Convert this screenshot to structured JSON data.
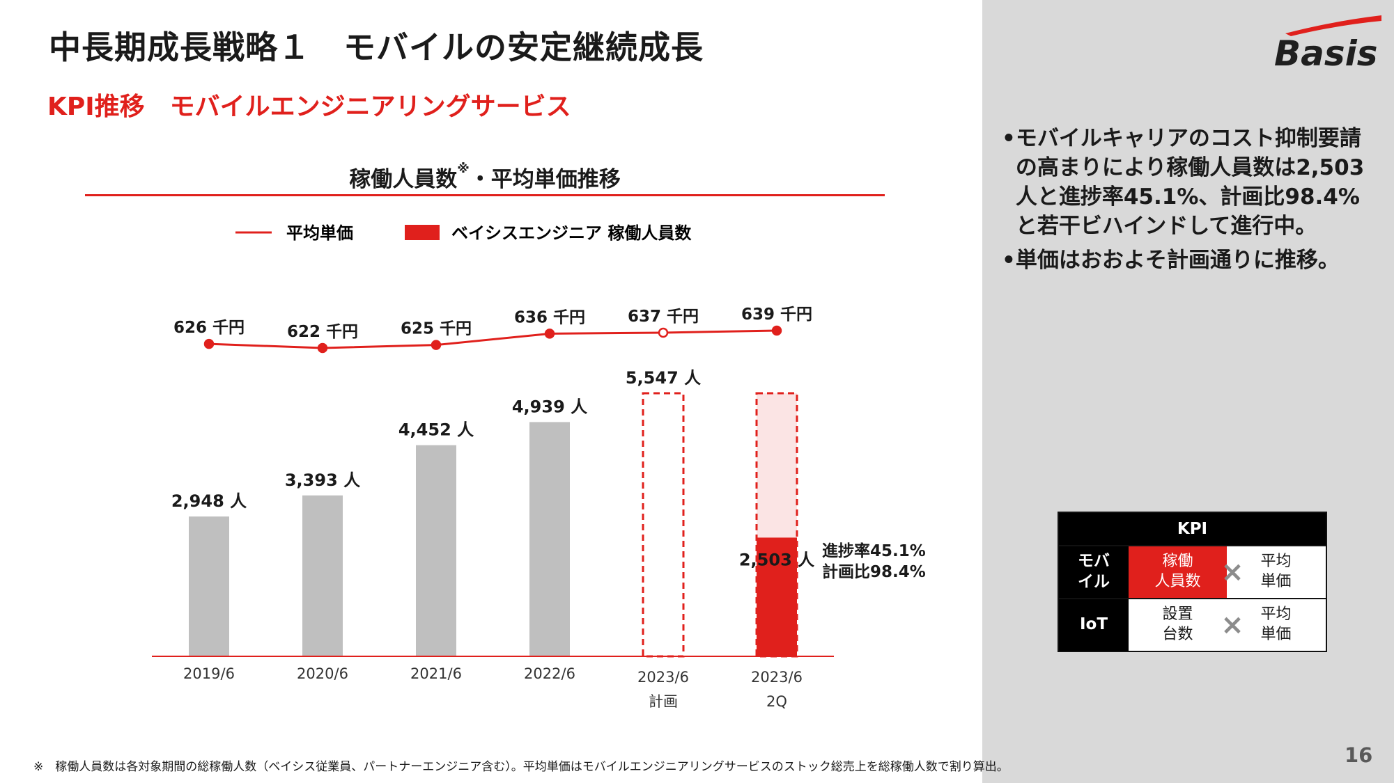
{
  "header": {
    "title": "中長期成長戦略１　モバイルの安定継続成長",
    "subtitle": "KPI推移　モバイルエンジニアリングサービス",
    "logo_text": "Basis"
  },
  "chart_title": {
    "main": "稼働人員数",
    "sup": "※",
    "rest": "・平均単価推移"
  },
  "legend": {
    "line_label": "平均単価",
    "bar_label": "ベイシスエンジニア 稼働人員数"
  },
  "chart_data": {
    "type": "bar",
    "categories": [
      "2019/6",
      "2020/6",
      "2021/6",
      "2022/6",
      "2023/6\n計画",
      "2023/6\n2Q"
    ],
    "series": [
      {
        "name": "ベイシスエンジニア 稼働人員数",
        "type": "bar",
        "values": [
          2948,
          3393,
          4452,
          4939,
          5547,
          2503
        ],
        "labels": [
          "2,948 人",
          "3,393 人",
          "4,452 人",
          "4,939 人",
          "5,547 人",
          "2,503 人"
        ],
        "styles": [
          "solid-gray",
          "solid-gray",
          "solid-gray",
          "solid-gray",
          "dashed-outline-red",
          "solid-red"
        ]
      },
      {
        "name": "平均単価",
        "type": "line",
        "values": [
          626,
          622,
          625,
          636,
          637,
          639
        ],
        "labels": [
          "626 千円",
          "622 千円",
          "625 千円",
          "636 千円",
          "637 千円",
          "639 千円"
        ],
        "hollow_point_index": 4
      }
    ],
    "plan_background_value": 5547,
    "annotation": [
      "進捗率45.1%",
      "計画比98.4%"
    ],
    "colors": {
      "gray": "#bfbfbf",
      "red": "#e0201c",
      "light_red": "#fbe4e4"
    }
  },
  "bullets": [
    "モバイルキャリアのコスト抑制要請の高まりにより稼働人員数は2,503人と進捗率45.1%、計画比98.4%と若干ビハインドして進行中。",
    "単価はおおよそ計画通りに推移。"
  ],
  "kpi_table": {
    "header": "KPI",
    "rows": [
      {
        "label": "モバ\nイル",
        "left": "稼働\n人員数",
        "right": "平均\n単価"
      },
      {
        "label": "IoT",
        "left": "設置\n台数",
        "right": "平均\n単価"
      }
    ],
    "operator": "×"
  },
  "footnote": "※　稼働人員数は各対象期間の総稼働人数（ベイシス従業員、パートナーエンジニア含む）。平均単価はモバイルエンジニアリングサービスのストック総売上を総稼働人数で割り算出。",
  "page_number": "16"
}
